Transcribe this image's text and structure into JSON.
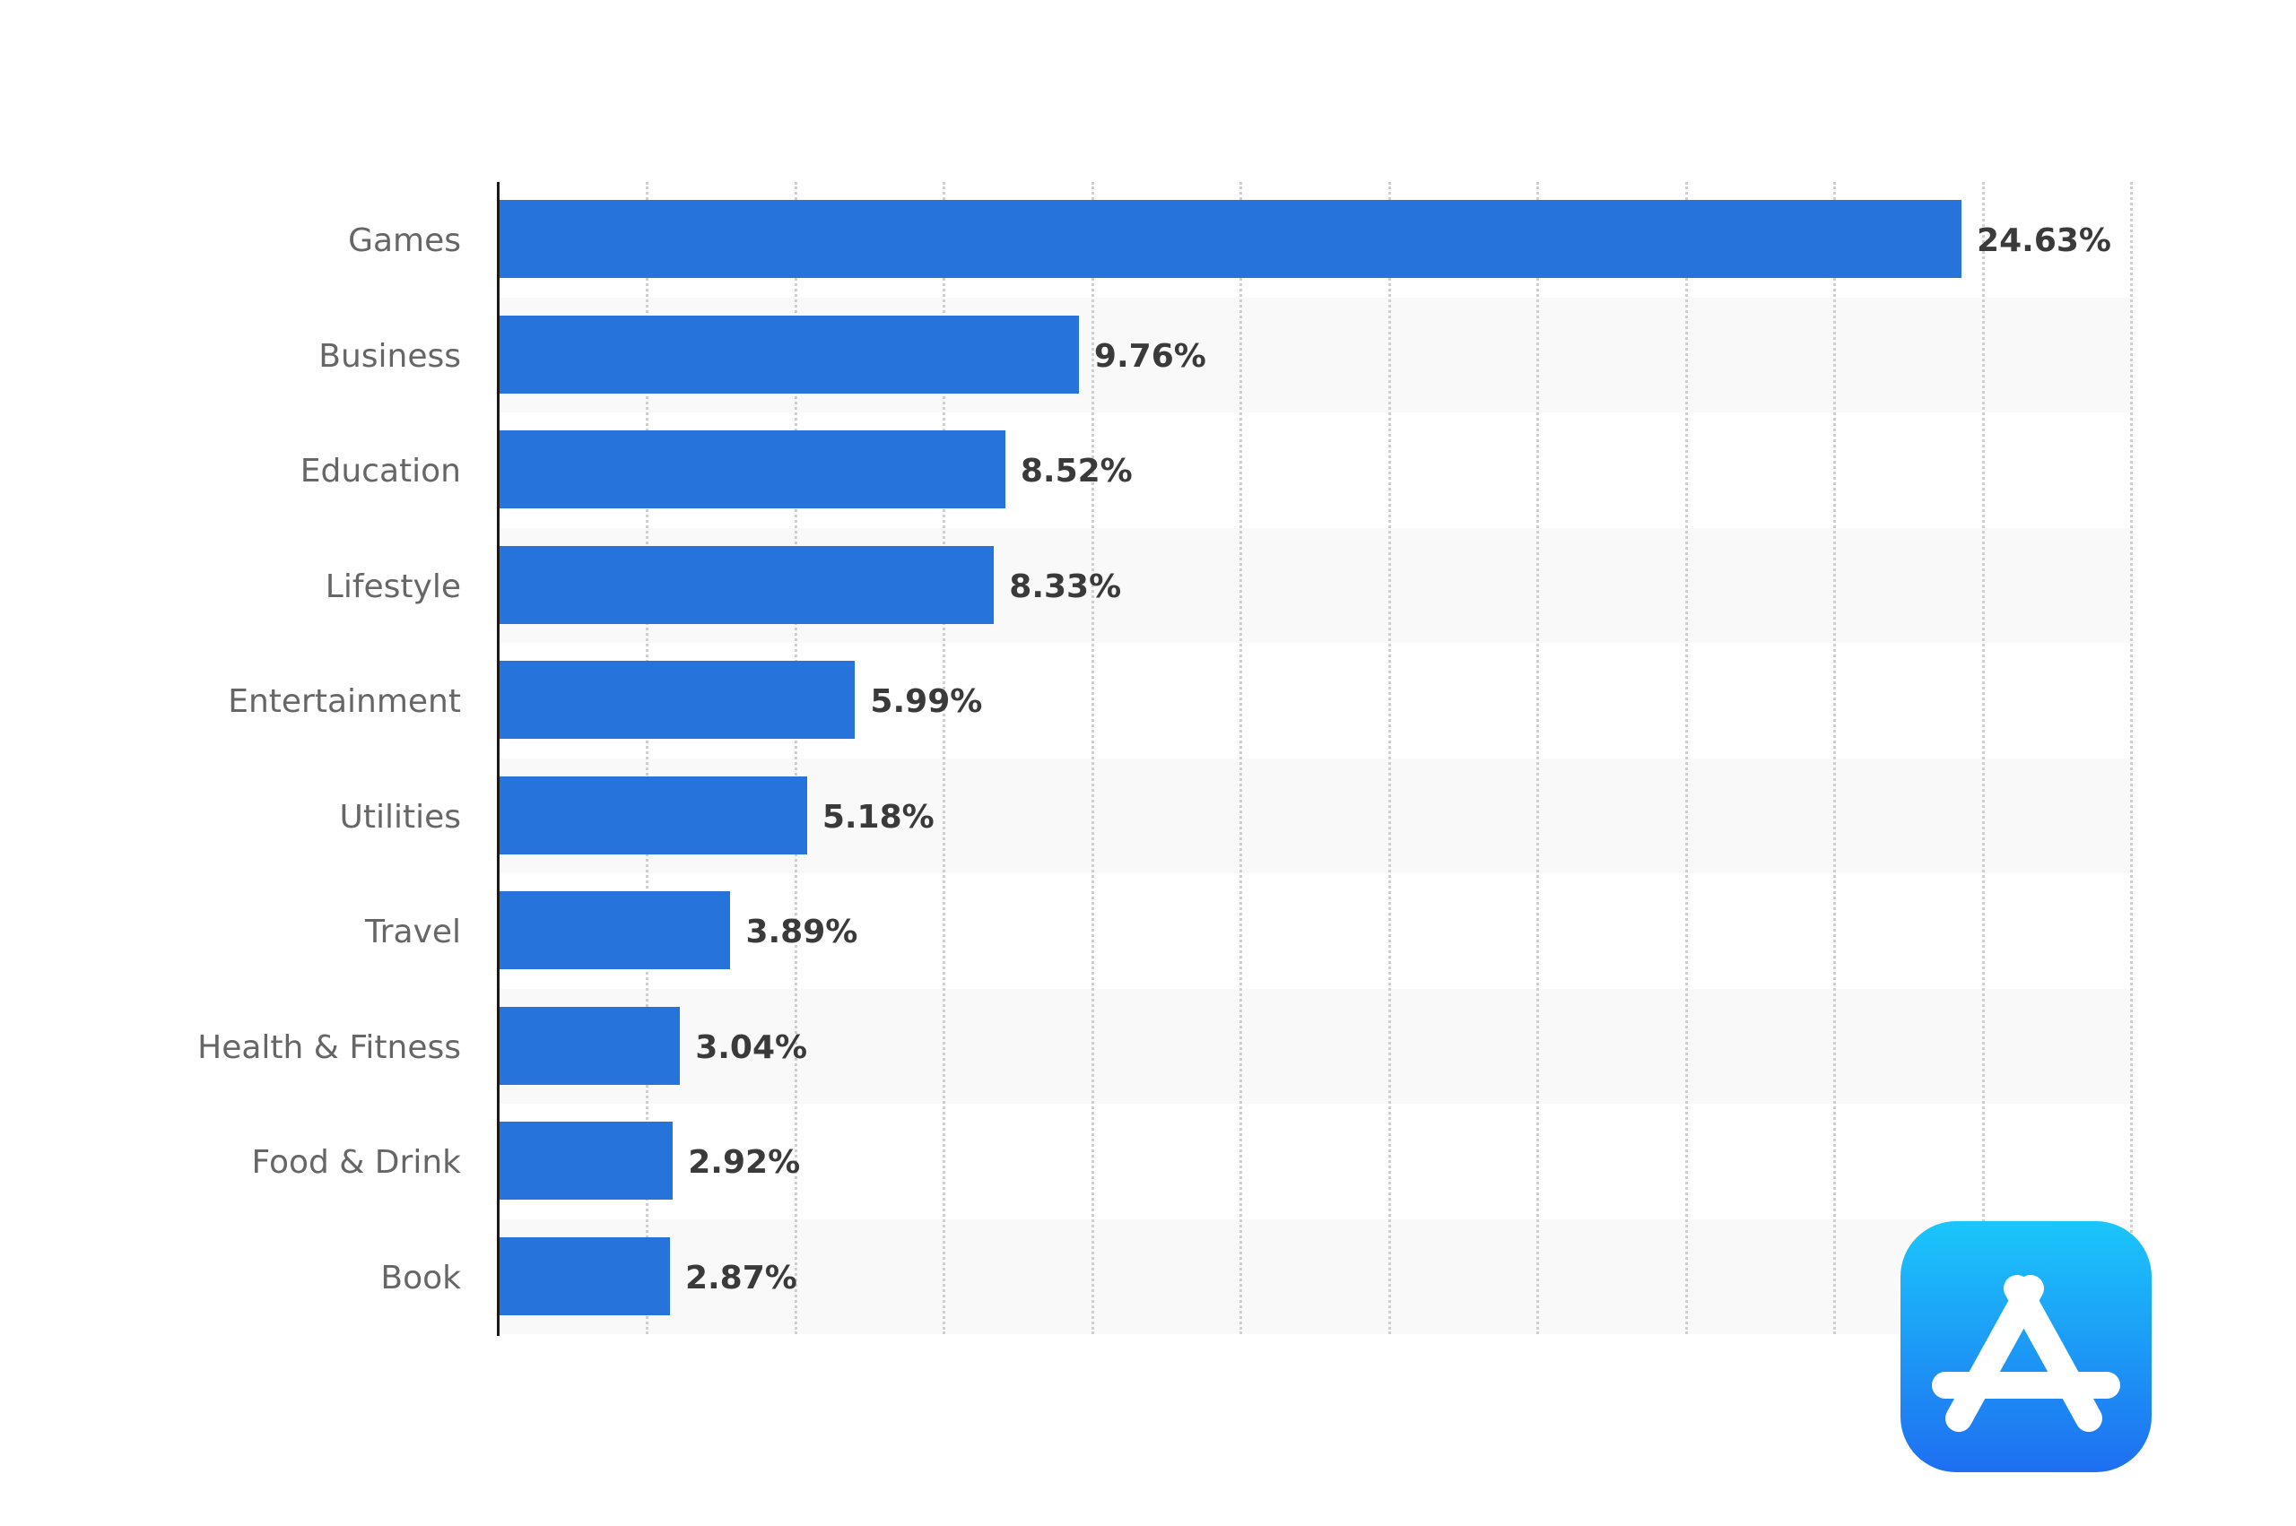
{
  "chart_data": {
    "type": "bar",
    "orientation": "horizontal",
    "title": "",
    "xlabel": "",
    "ylabel": "",
    "xlim": [
      0,
      27.5
    ],
    "grid": true,
    "gridline_interval": 2.5,
    "x_tick_labels_visible": false,
    "legend": null,
    "categories": [
      "Games",
      "Business",
      "Education",
      "Lifestyle",
      "Entertainment",
      "Utilities",
      "Travel",
      "Health & Fitness",
      "Food & Drink",
      "Book"
    ],
    "values": [
      24.63,
      9.76,
      8.52,
      8.33,
      5.99,
      5.18,
      3.89,
      3.04,
      2.92,
      2.87
    ],
    "value_labels": [
      "24.63%",
      "9.76%",
      "8.52%",
      "8.33%",
      "5.99%",
      "5.18%",
      "3.89%",
      "3.04%",
      "2.92%",
      "2.87%"
    ],
    "unit": "%",
    "bar_color": "#2673db"
  },
  "colors": {
    "bar": "#2673db",
    "band": "#f9f9f9",
    "category_text": "#666666",
    "value_text": "#3a3a3a",
    "icon_gradient_top": "#1bc6fb",
    "icon_gradient_bottom": "#1e6ff1"
  },
  "icon": {
    "name": "app-store-icon"
  }
}
